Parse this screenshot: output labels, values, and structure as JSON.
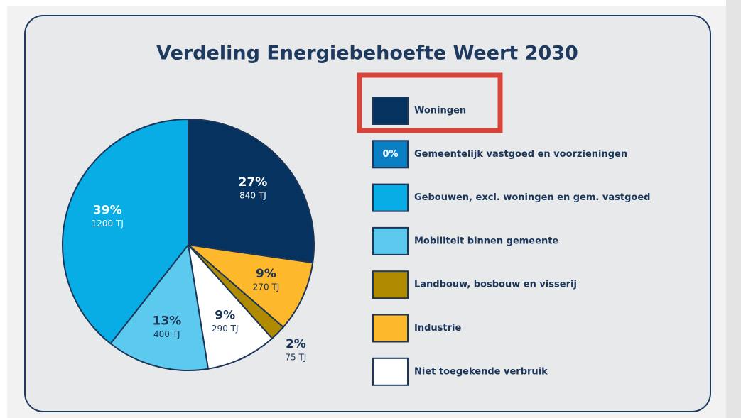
{
  "chart_data": {
    "type": "pie",
    "title": "Verdeling Energiebehoefte Weert 2030",
    "categories": [
      "Woningen",
      "Industrie",
      "Landbouw, bosbouw en visserij",
      "Niet toegekende verbruik",
      "Mobiliteit binnen gemeente",
      "Gebouwen, excl. woningen en gem. vastgoed"
    ],
    "values": [
      27,
      9,
      2,
      9,
      13,
      39
    ],
    "value_labels": [
      "27%",
      "9%",
      "2%",
      "9%",
      "13%",
      "39%"
    ],
    "sublabels": [
      "840 TJ",
      "270 TJ",
      "75 TJ",
      "290 TJ",
      "400 TJ",
      "1200 TJ"
    ],
    "colors": [
      "#05325e",
      "#fdb82b",
      "#b08a00",
      "#ffffff",
      "#5ccaee",
      "#09ade6"
    ],
    "legend": [
      {
        "name": "Woningen",
        "color": "#05325e"
      },
      {
        "name": "Gemeentelijk vastgoed en voorzieningen",
        "color": "#0b7fc4",
        "value": 0,
        "value_label": "0%"
      },
      {
        "name": "Gebouwen, excl. woningen en gem. vastgoed",
        "color": "#09ade6"
      },
      {
        "name": "Mobiliteit binnen gemeente",
        "color": "#5ccaee"
      },
      {
        "name": "Landbouw, bosbouw en visserij",
        "color": "#b08a00"
      },
      {
        "name": "Industrie",
        "color": "#fdb82b"
      },
      {
        "name": "Niet toegekende verbruik",
        "color": "#ffffff"
      }
    ]
  }
}
